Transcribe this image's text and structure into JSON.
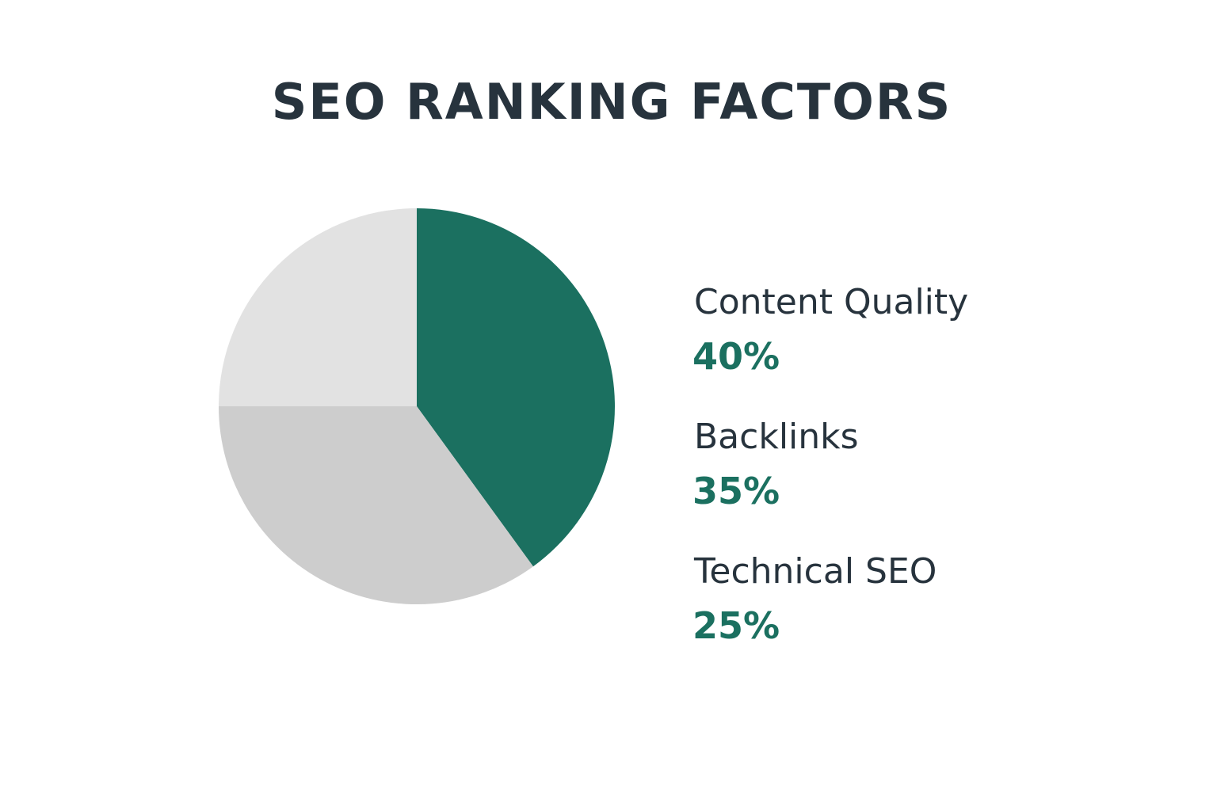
{
  "chart_data": {
    "type": "pie",
    "title": "SEO RANKING FACTORS",
    "categories": [
      "Content Quality",
      "Backlinks",
      "Technical SEO"
    ],
    "values": [
      40,
      35,
      25
    ],
    "value_labels": [
      "40%",
      "35%",
      "25%"
    ],
    "colors": [
      "#1b7060",
      "#cdcdcd",
      "#e2e2e2"
    ]
  }
}
